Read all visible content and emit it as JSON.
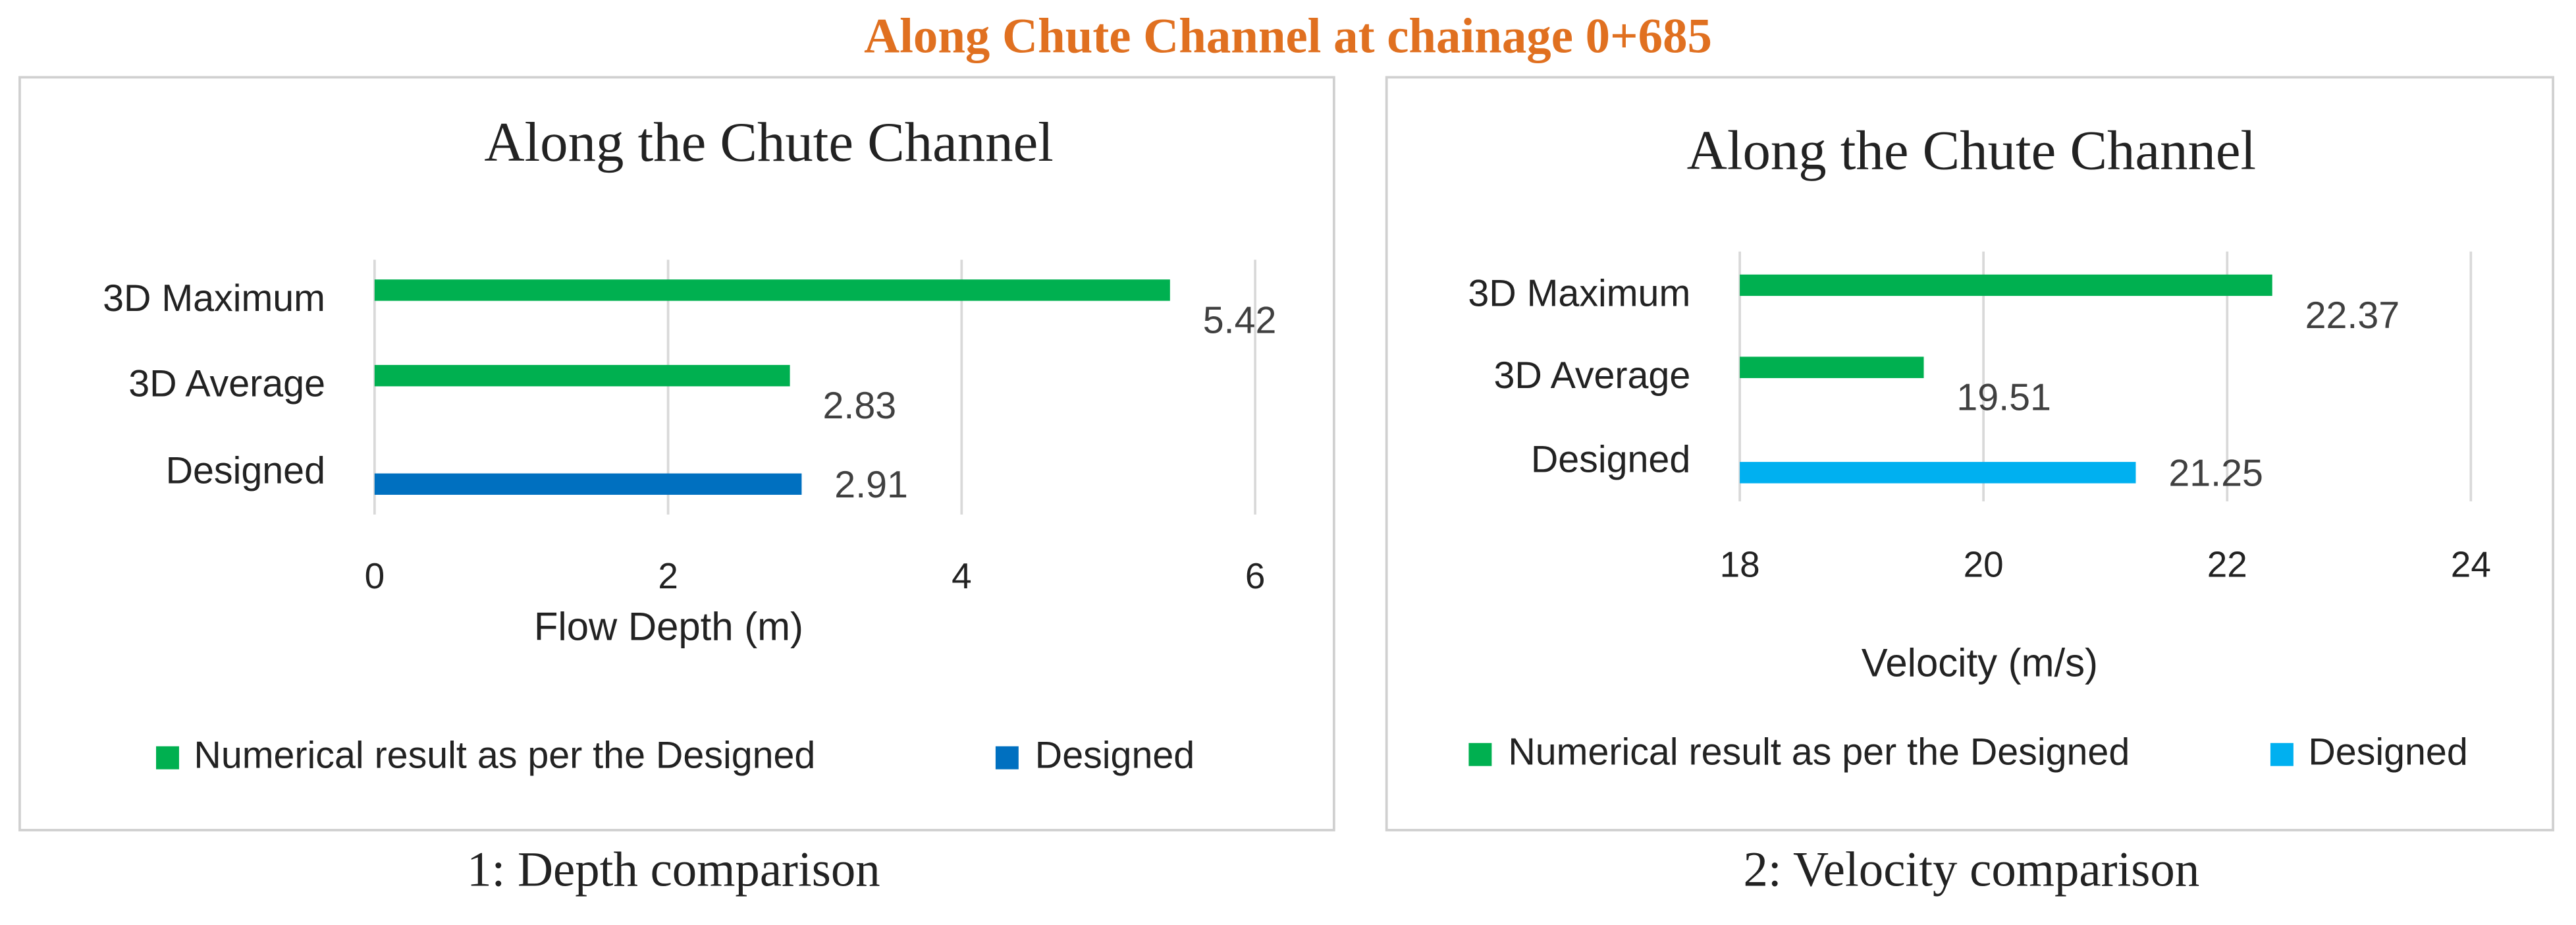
{
  "title": "Along Chute Channel at chainage 0+685",
  "chart_data": [
    {
      "type": "bar",
      "orientation": "horizontal",
      "title": "Along the Chute Channel",
      "caption": "1: Depth comparison",
      "x_label": "Flow Depth (m)",
      "categories": [
        "3D Maximum",
        "3D Average",
        "Designed"
      ],
      "series": [
        {
          "name": "Numerical result as per the Designed",
          "color": "#00b050",
          "values": [
            5.42,
            2.83,
            null
          ]
        },
        {
          "name": "Designed",
          "color": "#0070c0",
          "values": [
            null,
            null,
            2.91
          ]
        }
      ],
      "xlim": [
        0,
        6
      ],
      "xticks": [
        0,
        2,
        4,
        6
      ],
      "grid": true,
      "legend": "bottom"
    },
    {
      "type": "bar",
      "orientation": "horizontal",
      "title": "Along the Chute Channel",
      "caption": "2: Velocity comparison",
      "x_label": "Velocity (m/s)",
      "categories": [
        "3D Maximum",
        "3D Average",
        "Designed"
      ],
      "series": [
        {
          "name": "Numerical result as per the Designed",
          "color": "#00b050",
          "values": [
            22.37,
            19.51,
            null
          ]
        },
        {
          "name": "Designed",
          "color": "#00b0f0",
          "values": [
            null,
            null,
            21.25
          ]
        }
      ],
      "xlim": [
        18,
        24
      ],
      "xticks": [
        18,
        20,
        22,
        24
      ],
      "grid": true,
      "legend": "bottom"
    }
  ]
}
